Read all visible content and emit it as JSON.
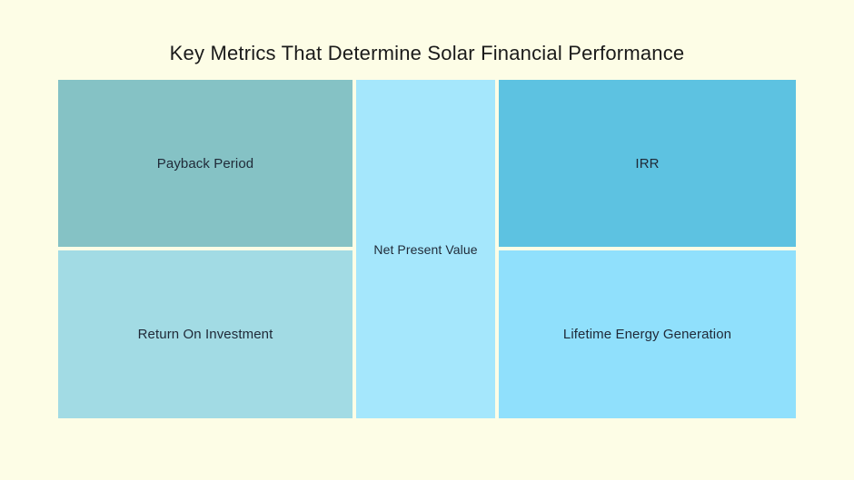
{
  "page": {
    "background_color": "#FDFDE6",
    "title": "Key Metrics That Determine Solar Financial Performance",
    "title_color": "#1A1A1A"
  },
  "treemap": {
    "label_text_color": "#1F2937",
    "blocks": [
      {
        "id": "payback-period",
        "label": "Payback Period",
        "color": "#85C2C5"
      },
      {
        "id": "return-on-investment",
        "label": "Return On Investment",
        "color": "#A2DBE4"
      },
      {
        "id": "net-present-value",
        "label": "Net Present Value",
        "color": "#A5E7FC"
      },
      {
        "id": "irr",
        "label": "IRR",
        "color": "#5DC2E1"
      },
      {
        "id": "lifetime-energy-generation",
        "label": "Lifetime Energy Generation",
        "color": "#90E0FC"
      }
    ]
  }
}
